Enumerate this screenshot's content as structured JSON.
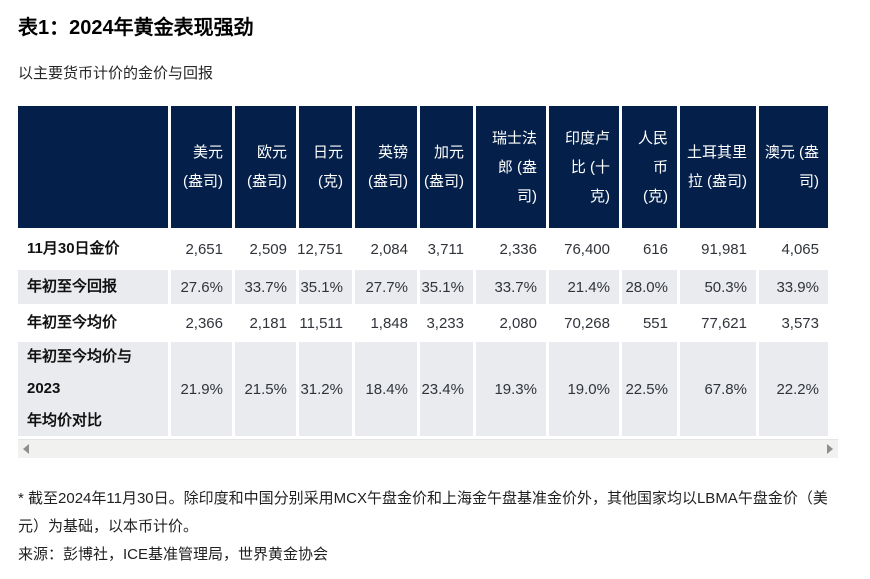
{
  "page": {
    "title": "表1：2024年黄金表现强劲",
    "subtitle": "以主要货币计价的金价与回报"
  },
  "table": {
    "columns": [
      "美元 (盎司)",
      "欧元 (盎司)",
      "日元 (克)",
      "英镑 (盎司)",
      "加元 (盎司)",
      "瑞士法郎 (盎司)",
      "印度卢比 (十克)",
      "人民币 (克)",
      "土耳其里拉 (盎司)",
      "澳元 (盎司)"
    ],
    "rows": [
      {
        "label": "11月30日金价",
        "values": [
          "2,651",
          "2,509",
          "12,751",
          "2,084",
          "3,711",
          "2,336",
          "76,400",
          "616",
          "91,981",
          "4,065"
        ]
      },
      {
        "label": "年初至今回报",
        "values": [
          "27.6%",
          "33.7%",
          "35.1%",
          "27.7%",
          "35.1%",
          "33.7%",
          "21.4%",
          "28.0%",
          "50.3%",
          "33.9%"
        ]
      },
      {
        "label": "年初至今均价",
        "values": [
          "2,366",
          "2,181",
          "11,511",
          "1,848",
          "3,233",
          "2,080",
          "70,268",
          "551",
          "77,621",
          "3,573"
        ]
      },
      {
        "label": "年初至今均价与\n2023\n年均价对比",
        "values": [
          "21.9%",
          "21.5%",
          "31.2%",
          "18.4%",
          "23.4%",
          "19.3%",
          "19.0%",
          "22.5%",
          "67.8%",
          "22.2%"
        ]
      }
    ]
  },
  "footnotes": {
    "note": "* 截至2024年11月30日。除印度和中国分别采用MCX午盘金价和上海金午盘基准金价外，其他国家均以LBMA午盘金价（美元）为基础，以本币计价。",
    "source": "来源：彭博社，ICE基准管理局，世界黄金协会"
  },
  "colors": {
    "header_bg": "#04204a",
    "alt_row_bg": "#e9ebee",
    "scrollbar_track": "#f1f1f0",
    "arrow_color": "#8f8f8f"
  }
}
